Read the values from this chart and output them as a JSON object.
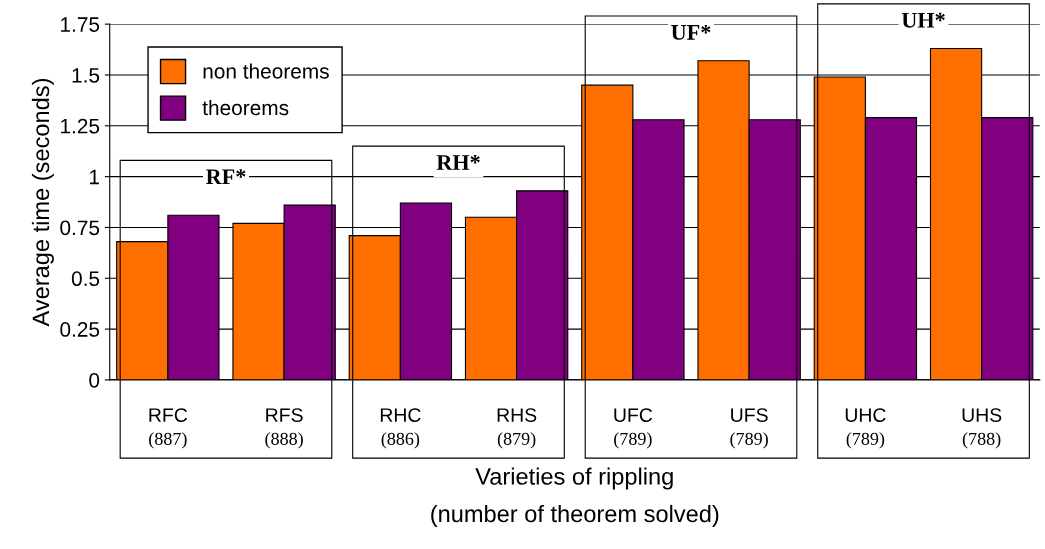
{
  "chart_data": {
    "type": "bar",
    "categories": [
      "RFC",
      "RFS",
      "RHC",
      "RHS",
      "UFC",
      "UFS",
      "UHC",
      "UHS"
    ],
    "series": [
      {
        "name": "non theorems",
        "color": "#ff6f00",
        "values": [
          0.68,
          0.77,
          0.71,
          0.8,
          1.45,
          1.57,
          1.49,
          1.63
        ]
      },
      {
        "name": "theorems",
        "color": "#800080",
        "values": [
          0.81,
          0.86,
          0.87,
          0.93,
          1.28,
          1.28,
          1.29,
          1.29
        ]
      }
    ],
    "ylabel": "Average time (seconds)",
    "xlabel": "Varieties of rippling\n(number of theorem solved)",
    "ylim": [
      0,
      1.75
    ],
    "yticks": [
      0,
      0.25,
      0.5,
      0.75,
      1,
      1.25,
      1.5,
      1.75
    ],
    "grid": "y",
    "legend": "top left",
    "annotations": [
      "RF*",
      "RH*",
      "UF*",
      "UH*",
      "(887)",
      "(888)",
      "(886)",
      "(879)",
      "(789)",
      "(789)",
      "(789)",
      "(788)"
    ]
  }
}
